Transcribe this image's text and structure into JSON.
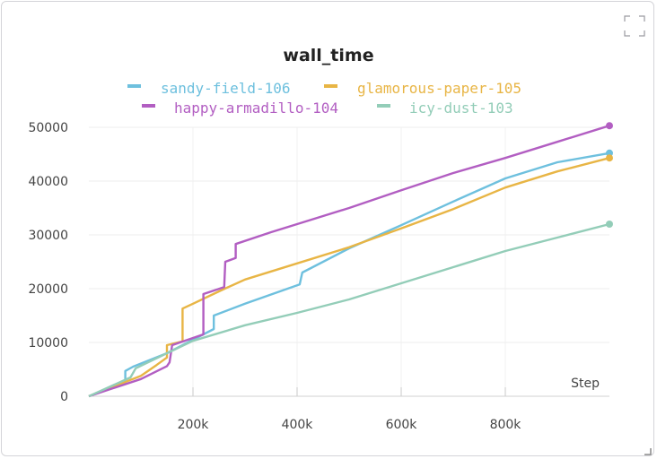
{
  "panel": {
    "expand_icon": "expand-corners-icon",
    "resize_icon": "resize-corner-icon"
  },
  "chart_data": {
    "type": "line",
    "title": "wall_time",
    "xlabel": "Step",
    "ylabel": "",
    "xlim": [
      0,
      1000000
    ],
    "ylim": [
      0,
      50000
    ],
    "x_ticks": [
      200000,
      400000,
      600000,
      800000
    ],
    "x_tick_labels": [
      "200k",
      "400k",
      "600k",
      "800k"
    ],
    "y_ticks": [
      0,
      10000,
      20000,
      30000,
      40000,
      50000
    ],
    "y_tick_labels": [
      "0",
      "10000",
      "20000",
      "30000",
      "40000",
      "50000"
    ],
    "grid": true,
    "legend_position": "top",
    "series": [
      {
        "name": "sandy-field-106",
        "color": "#6ec0de",
        "points": [
          [
            0,
            0
          ],
          [
            70000,
            2500
          ],
          [
            70000,
            4700
          ],
          [
            85000,
            5500
          ],
          [
            150000,
            8000
          ],
          [
            200000,
            10500
          ],
          [
            240000,
            12500
          ],
          [
            240000,
            15000
          ],
          [
            300000,
            17200
          ],
          [
            405000,
            20800
          ],
          [
            410000,
            23000
          ],
          [
            500000,
            27500
          ],
          [
            600000,
            31800
          ],
          [
            700000,
            36200
          ],
          [
            800000,
            40500
          ],
          [
            900000,
            43500
          ],
          [
            1000000,
            45200
          ]
        ]
      },
      {
        "name": "glamorous-paper-105",
        "color": "#e8b545",
        "points": [
          [
            0,
            0
          ],
          [
            100000,
            3800
          ],
          [
            130000,
            5800
          ],
          [
            150000,
            7200
          ],
          [
            150000,
            9500
          ],
          [
            180000,
            10200
          ],
          [
            180000,
            16300
          ],
          [
            200000,
            17200
          ],
          [
            250000,
            19500
          ],
          [
            300000,
            21700
          ],
          [
            400000,
            24700
          ],
          [
            500000,
            27700
          ],
          [
            600000,
            31200
          ],
          [
            700000,
            34800
          ],
          [
            800000,
            38800
          ],
          [
            900000,
            41800
          ],
          [
            1000000,
            44300
          ]
        ]
      },
      {
        "name": "happy-armadillo-104",
        "color": "#b25ec2",
        "points": [
          [
            0,
            0
          ],
          [
            100000,
            3200
          ],
          [
            150000,
            5600
          ],
          [
            155000,
            6300
          ],
          [
            160000,
            9500
          ],
          [
            220000,
            11500
          ],
          [
            220000,
            19000
          ],
          [
            260000,
            20300
          ],
          [
            262000,
            25000
          ],
          [
            282000,
            25700
          ],
          [
            282000,
            28300
          ],
          [
            350000,
            30500
          ],
          [
            400000,
            32000
          ],
          [
            500000,
            35000
          ],
          [
            600000,
            38300
          ],
          [
            700000,
            41500
          ],
          [
            800000,
            44300
          ],
          [
            900000,
            47300
          ],
          [
            1000000,
            50300
          ]
        ]
      },
      {
        "name": "icy-dust-103",
        "color": "#93cdb8",
        "points": [
          [
            0,
            0
          ],
          [
            80000,
            3500
          ],
          [
            90000,
            5200
          ],
          [
            150000,
            8000
          ],
          [
            200000,
            10300
          ],
          [
            300000,
            13200
          ],
          [
            400000,
            15500
          ],
          [
            500000,
            18000
          ],
          [
            600000,
            21000
          ],
          [
            700000,
            24000
          ],
          [
            800000,
            27000
          ],
          [
            900000,
            29500
          ],
          [
            1000000,
            32000
          ]
        ]
      }
    ]
  }
}
